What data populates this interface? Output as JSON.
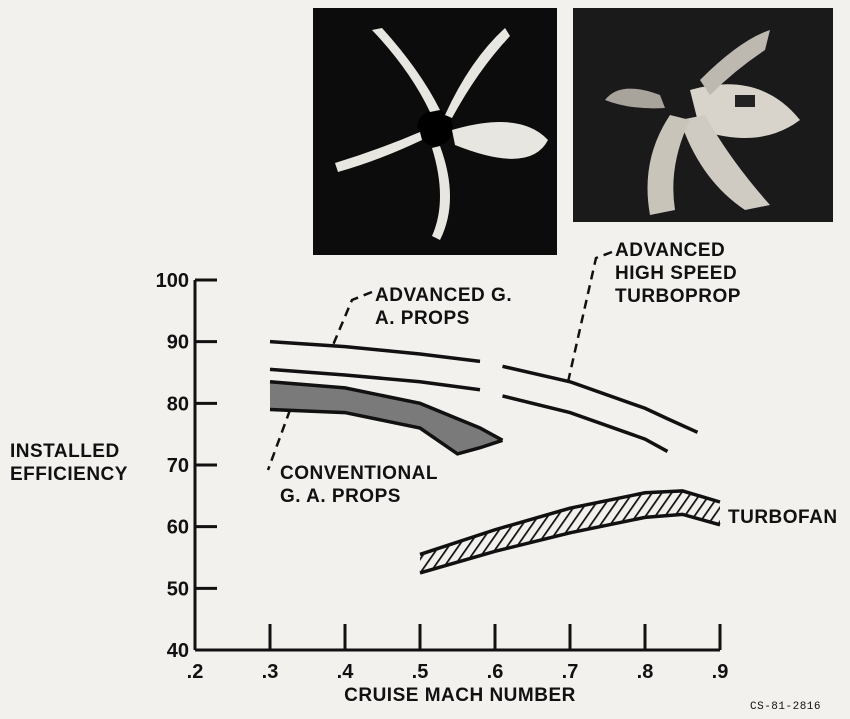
{
  "chart_data": {
    "type": "band",
    "xlabel": "CRUISE MACH NUMBER",
    "ylabel": "INSTALLED EFFICIENCY",
    "note": "CS-81-2816",
    "xlim": [
      0.2,
      0.9
    ],
    "ylim": [
      40,
      100
    ],
    "xticks": [
      {
        "value": 0.2,
        "label": ".2"
      },
      {
        "value": 0.3,
        "label": ".3"
      },
      {
        "value": 0.4,
        "label": ".4"
      },
      {
        "value": 0.5,
        "label": ".5"
      },
      {
        "value": 0.6,
        "label": ".6"
      },
      {
        "value": 0.7,
        "label": ".7"
      },
      {
        "value": 0.8,
        "label": ".8"
      },
      {
        "value": 0.9,
        "label": ".9"
      }
    ],
    "yticks": [
      40,
      50,
      60,
      70,
      80,
      90,
      100
    ],
    "color": "#111111",
    "series": [
      {
        "name": "ADVANCED G. A. PROPS",
        "fill": "none",
        "x": [
          0.3,
          0.4,
          0.5,
          0.58
        ],
        "upper": [
          90,
          89.2,
          88,
          86.8
        ],
        "lower": [
          85.5,
          84.6,
          83.5,
          82.2
        ]
      },
      {
        "name": "ADVANCED HIGH SPEED TURBOPROP",
        "fill": "none",
        "x": [
          0.61,
          0.7,
          0.8,
          0.83,
          0.87
        ],
        "upper": [
          86,
          83.5,
          79.2,
          77.5,
          75.3
        ],
        "lower": [
          81.2,
          78.5,
          74.2,
          72.2,
          null
        ]
      },
      {
        "name": "CONVENTIONAL G. A. PROPS",
        "fill": "gray",
        "x": [
          0.3,
          0.4,
          0.5,
          0.55,
          0.58,
          0.61
        ],
        "upper": [
          83.5,
          82.5,
          80,
          77.5,
          76,
          74
        ],
        "lower": [
          79,
          78.5,
          76,
          71.8,
          72.8,
          74
        ]
      },
      {
        "name": "TURBOFAN",
        "fill": "hatch",
        "x": [
          0.5,
          0.6,
          0.7,
          0.8,
          0.85,
          0.9
        ],
        "upper": [
          55.5,
          59.5,
          63,
          65.5,
          65.8,
          64
        ],
        "lower": [
          52.5,
          56,
          59,
          61.5,
          62,
          60.3
        ]
      }
    ]
  }
}
